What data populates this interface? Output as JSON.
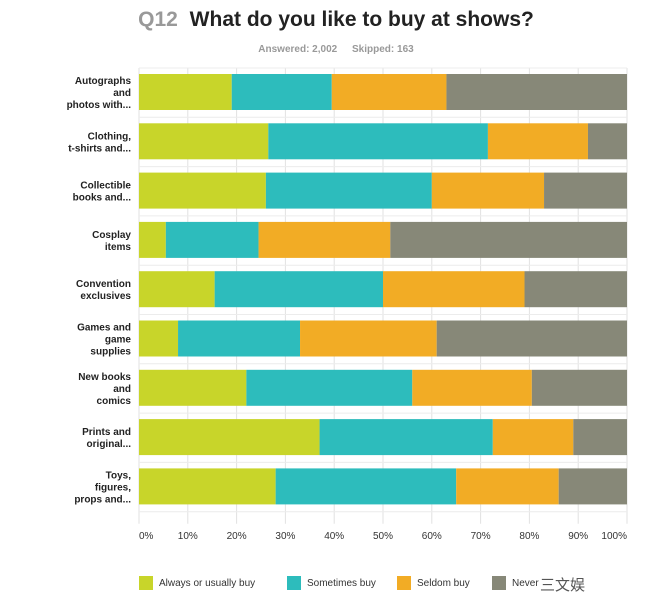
{
  "header": {
    "qnum": "Q12",
    "question": "What do you like to buy at shows?",
    "answered": "Answered: 2,002",
    "skipped": "Skipped: 163"
  },
  "watermark": "三文娱",
  "chart_data": {
    "type": "bar",
    "orientation": "horizontal",
    "stacked": true,
    "categories": [
      [
        "Autographs",
        "and",
        "photos with..."
      ],
      [
        "Clothing,",
        "t-shirts and..."
      ],
      [
        "Collectible",
        "books and..."
      ],
      [
        "Cosplay",
        "items"
      ],
      [
        "Convention",
        "exclusives"
      ],
      [
        "Games and",
        "game",
        "supplies"
      ],
      [
        "New books",
        "and",
        "comics"
      ],
      [
        "Prints and",
        "original..."
      ],
      [
        "Toys,",
        "figures,",
        "props and..."
      ]
    ],
    "series": [
      {
        "name": "Always or usually buy",
        "color": "#c8d52a",
        "values": [
          19,
          26.5,
          26,
          5.5,
          15.5,
          8,
          22,
          37,
          28
        ]
      },
      {
        "name": "Sometimes buy",
        "color": "#2dbcbc",
        "values": [
          20.5,
          45,
          34,
          19,
          34.5,
          25,
          34,
          35.5,
          37
        ]
      },
      {
        "name": "Seldom buy",
        "color": "#f2ac25",
        "values": [
          23.5,
          20.5,
          23,
          27,
          29,
          28,
          24.5,
          16.5,
          21
        ]
      },
      {
        "name": "Never",
        "color": "#878878",
        "values": [
          37,
          8,
          17,
          48.5,
          21,
          39,
          19.5,
          11,
          14
        ]
      }
    ],
    "xlim": [
      0,
      100
    ],
    "xticks": [
      "0%",
      "10%",
      "20%",
      "30%",
      "40%",
      "50%",
      "60%",
      "70%",
      "80%",
      "90%",
      "100%"
    ],
    "grid": true,
    "legend_position": "bottom"
  }
}
